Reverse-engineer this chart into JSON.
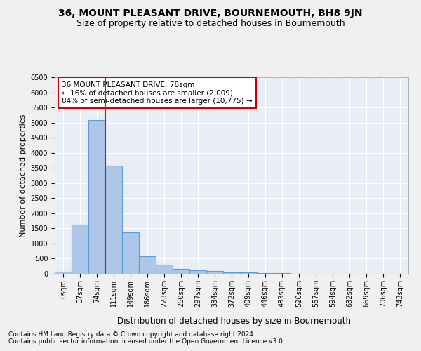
{
  "title": "36, MOUNT PLEASANT DRIVE, BOURNEMOUTH, BH8 9JN",
  "subtitle": "Size of property relative to detached houses in Bournemouth",
  "xlabel": "Distribution of detached houses by size in Bournemouth",
  "ylabel": "Number of detached properties",
  "categories": [
    "0sqm",
    "37sqm",
    "74sqm",
    "111sqm",
    "149sqm",
    "186sqm",
    "223sqm",
    "260sqm",
    "297sqm",
    "334sqm",
    "372sqm",
    "409sqm",
    "446sqm",
    "483sqm",
    "520sqm",
    "557sqm",
    "594sqm",
    "632sqm",
    "669sqm",
    "706sqm",
    "743sqm"
  ],
  "values": [
    75,
    1620,
    5080,
    3580,
    1380,
    580,
    295,
    155,
    120,
    95,
    55,
    35,
    15,
    15,
    10,
    5,
    5,
    2,
    2,
    1,
    0
  ],
  "bar_color": "#aec6e8",
  "bar_edge_color": "#5b9bd5",
  "bar_edge_width": 0.8,
  "red_line_index": 2,
  "ylim": [
    0,
    6500
  ],
  "yticks": [
    0,
    500,
    1000,
    1500,
    2000,
    2500,
    3000,
    3500,
    4000,
    4500,
    5000,
    5500,
    6000,
    6500
  ],
  "annotation_text": "36 MOUNT PLEASANT DRIVE: 78sqm\n← 16% of detached houses are smaller (2,009)\n84% of semi-detached houses are larger (10,775) →",
  "annotation_box_color": "#ffffff",
  "annotation_box_edge_color": "#cc0000",
  "footer1": "Contains HM Land Registry data © Crown copyright and database right 2024.",
  "footer2": "Contains public sector information licensed under the Open Government Licence v3.0.",
  "bg_color": "#e8eef5",
  "grid_color": "#ffffff",
  "fig_bg_color": "#f0f0f0",
  "title_fontsize": 10,
  "subtitle_fontsize": 9,
  "xlabel_fontsize": 8.5,
  "ylabel_fontsize": 8,
  "tick_fontsize": 7,
  "footer_fontsize": 6.5,
  "annotation_fontsize": 7.5
}
